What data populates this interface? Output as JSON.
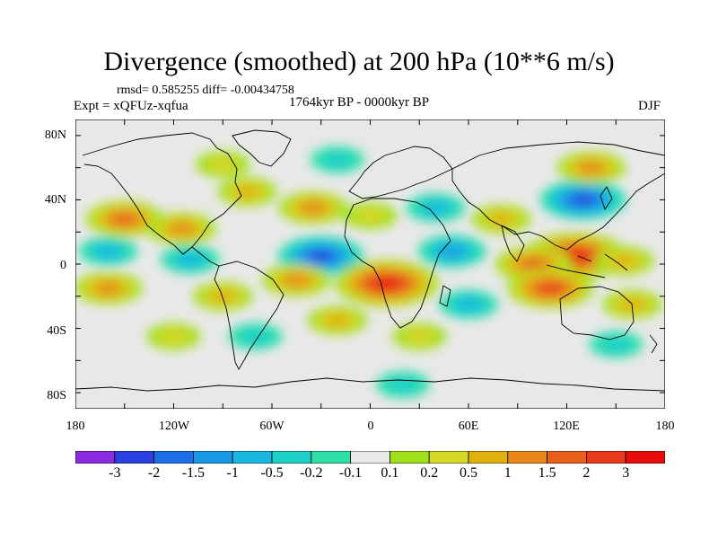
{
  "header": {
    "title": "Divergence (smoothed) at 200 hPa (10**6 m/s)",
    "stats": "rmsd= 0.585255 diff= -0.00434758",
    "experiment": "Expt = xQFUz-xqfua",
    "period": "1764kyr BP - 0000kyr BP",
    "season": "DJF"
  },
  "axes": {
    "lat_labels": [
      "80N",
      "40N",
      "0",
      "40S",
      "80S"
    ],
    "lon_labels": [
      "180",
      "120W",
      "60W",
      "0",
      "60E",
      "120E",
      "180"
    ]
  },
  "colorbar": {
    "labels": [
      "-3",
      "-2",
      "-1.5",
      "-1",
      "-0.5",
      "-0.2",
      "-0.1",
      "0.1",
      "0.2",
      "0.5",
      "1",
      "1.5",
      "2",
      "3"
    ],
    "colors": [
      "#8a2be2",
      "#2a3fe0",
      "#1d6fe8",
      "#1a9ae6",
      "#19b8e0",
      "#1fd0c8",
      "#2ee0a8",
      "#e8e8e8",
      "#9fe01a",
      "#d6d626",
      "#e0b010",
      "#e8881a",
      "#e8601a",
      "#e83a1a",
      "#e80d0d"
    ]
  },
  "map": {
    "ocean_color": "#e8e8e8",
    "coastline_color": "#000000"
  },
  "field": {
    "blobs": [
      {
        "lon": -150,
        "lat": 28,
        "v": 1.5
      },
      {
        "lon": -115,
        "lat": 22,
        "v": 1.0
      },
      {
        "lon": -75,
        "lat": 45,
        "v": 0.5
      },
      {
        "lon": -35,
        "lat": 35,
        "v": 1.0
      },
      {
        "lon": 0,
        "lat": 30,
        "v": 0.2
      },
      {
        "lon": 40,
        "lat": 35,
        "v": -0.5
      },
      {
        "lon": 80,
        "lat": 28,
        "v": 0.5
      },
      {
        "lon": 130,
        "lat": 40,
        "v": -2.0
      },
      {
        "lon": 135,
        "lat": 60,
        "v": 1.0
      },
      {
        "lon": -20,
        "lat": 65,
        "v": -0.2
      },
      {
        "lon": -90,
        "lat": 62,
        "v": 0.2
      },
      {
        "lon": -30,
        "lat": 5,
        "v": -2.0
      },
      {
        "lon": -110,
        "lat": 3,
        "v": -0.5
      },
      {
        "lon": -160,
        "lat": 8,
        "v": -0.5
      },
      {
        "lon": 50,
        "lat": 8,
        "v": -1.0
      },
      {
        "lon": 125,
        "lat": 5,
        "v": 3.0
      },
      {
        "lon": 100,
        "lat": 0,
        "v": 1.5
      },
      {
        "lon": 155,
        "lat": 2,
        "v": 0.5
      },
      {
        "lon": 10,
        "lat": -12,
        "v": 3.0
      },
      {
        "lon": -45,
        "lat": -10,
        "v": 1.0
      },
      {
        "lon": -90,
        "lat": -20,
        "v": 0.5
      },
      {
        "lon": -160,
        "lat": -15,
        "v": 1.0
      },
      {
        "lon": 110,
        "lat": -15,
        "v": 2.0
      },
      {
        "lon": 160,
        "lat": -25,
        "v": 0.5
      },
      {
        "lon": 60,
        "lat": -25,
        "v": -0.5
      },
      {
        "lon": -20,
        "lat": -35,
        "v": 0.5
      },
      {
        "lon": 30,
        "lat": -45,
        "v": 0.2
      },
      {
        "lon": -120,
        "lat": -45,
        "v": 0.2
      },
      {
        "lon": -70,
        "lat": -45,
        "v": -0.2
      },
      {
        "lon": 150,
        "lat": -50,
        "v": -0.2
      },
      {
        "lon": 20,
        "lat": -75,
        "v": -0.2
      }
    ]
  }
}
